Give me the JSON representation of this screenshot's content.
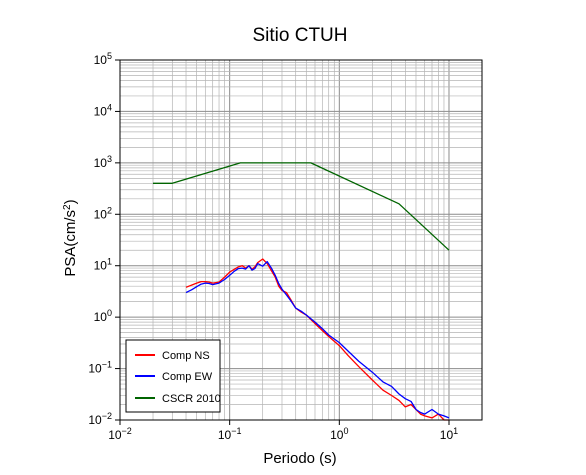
{
  "chart_data": {
    "type": "line",
    "title": "Sitio CTUH",
    "xlabel": "Periodo (s)",
    "ylabel_base": "PSA(cm/s",
    "ylabel_sup": "2",
    "ylabel_close": ")",
    "x_scale": "log",
    "y_scale": "log",
    "xlim": [
      0.01,
      20
    ],
    "ylim": [
      0.01,
      100000
    ],
    "grid": true,
    "legend_position": "bottom-left",
    "x_ticks": [
      {
        "value": 0.01,
        "base": "10",
        "exp": "−2"
      },
      {
        "value": 0.1,
        "base": "10",
        "exp": "−1"
      },
      {
        "value": 1,
        "base": "10",
        "exp": "0"
      },
      {
        "value": 10,
        "base": "10",
        "exp": "1"
      }
    ],
    "y_ticks": [
      {
        "value": 0.01,
        "base": "10",
        "exp": "−2"
      },
      {
        "value": 0.1,
        "base": "10",
        "exp": "−1"
      },
      {
        "value": 1,
        "base": "10",
        "exp": "0"
      },
      {
        "value": 10,
        "base": "10",
        "exp": "1"
      },
      {
        "value": 100,
        "base": "10",
        "exp": "2"
      },
      {
        "value": 1000,
        "base": "10",
        "exp": "3"
      },
      {
        "value": 10000,
        "base": "10",
        "exp": "4"
      },
      {
        "value": 100000,
        "base": "10",
        "exp": "5"
      }
    ],
    "series": [
      {
        "name": "Comp NS",
        "color": "#ff0000",
        "x": [
          0.04,
          0.045,
          0.05,
          0.055,
          0.06,
          0.065,
          0.07,
          0.08,
          0.09,
          0.1,
          0.11,
          0.12,
          0.13,
          0.14,
          0.15,
          0.16,
          0.17,
          0.18,
          0.2,
          0.22,
          0.24,
          0.26,
          0.28,
          0.3,
          0.33,
          0.36,
          0.4,
          0.45,
          0.5,
          0.6,
          0.7,
          0.8,
          1.0,
          1.2,
          1.5,
          2.0,
          2.5,
          3.0,
          3.5,
          4.0,
          4.5,
          5.0,
          5.5,
          6.0,
          7.0,
          8.0,
          9.0,
          10.0
        ],
        "y": [
          3.8,
          4.2,
          4.6,
          4.9,
          4.9,
          4.8,
          4.6,
          4.8,
          6.0,
          7.5,
          8.5,
          9.5,
          10.0,
          9.0,
          10.0,
          8.5,
          9.5,
          11.5,
          13.5,
          11.0,
          8.0,
          6.0,
          4.0,
          3.3,
          3.0,
          2.2,
          1.5,
          1.25,
          1.1,
          0.75,
          0.55,
          0.42,
          0.28,
          0.18,
          0.11,
          0.06,
          0.038,
          0.03,
          0.024,
          0.018,
          0.02,
          0.016,
          0.013,
          0.012,
          0.011,
          0.013,
          0.01,
          0.01
        ]
      },
      {
        "name": "Comp EW",
        "color": "#0000ff",
        "x": [
          0.04,
          0.045,
          0.05,
          0.055,
          0.06,
          0.065,
          0.07,
          0.08,
          0.09,
          0.1,
          0.11,
          0.12,
          0.13,
          0.14,
          0.15,
          0.16,
          0.17,
          0.18,
          0.2,
          0.22,
          0.24,
          0.26,
          0.28,
          0.3,
          0.33,
          0.36,
          0.4,
          0.45,
          0.5,
          0.6,
          0.7,
          0.8,
          1.0,
          1.2,
          1.5,
          2.0,
          2.5,
          3.0,
          3.5,
          4.0,
          4.5,
          5.0,
          5.5,
          6.0,
          7.0,
          8.0,
          9.0,
          10.0
        ],
        "y": [
          3.0,
          3.4,
          3.9,
          4.4,
          4.6,
          4.5,
          4.3,
          4.6,
          5.4,
          6.5,
          7.8,
          8.8,
          9.0,
          8.6,
          10.0,
          8.2,
          8.8,
          11.0,
          9.8,
          12.0,
          9.0,
          6.5,
          4.5,
          3.5,
          2.7,
          2.1,
          1.5,
          1.3,
          1.1,
          0.8,
          0.6,
          0.45,
          0.32,
          0.22,
          0.14,
          0.085,
          0.055,
          0.045,
          0.032,
          0.026,
          0.023,
          0.016,
          0.014,
          0.013,
          0.016,
          0.013,
          0.012,
          0.011
        ]
      },
      {
        "name": "CSCR 2010",
        "color": "#006400",
        "x": [
          0.02,
          0.03,
          0.125,
          0.55,
          3.5,
          10.0
        ],
        "y": [
          400,
          400,
          1000,
          1000,
          160,
          20
        ]
      }
    ]
  }
}
